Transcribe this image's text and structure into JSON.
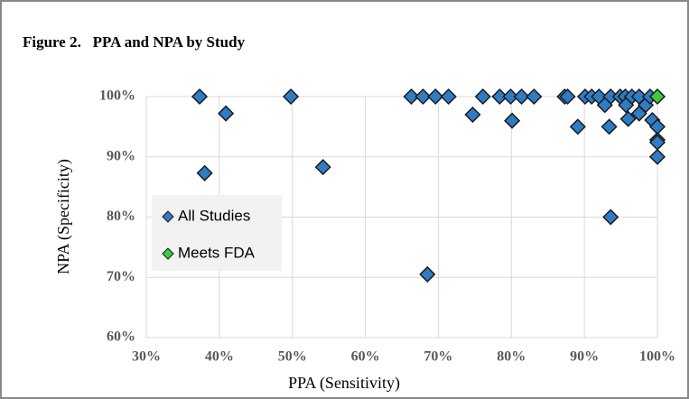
{
  "chart_data": {
    "type": "scatter",
    "title": "Figure 2.   PPA and NPA by Study",
    "x_label": "PPA (Sensitivity)",
    "y_label": "NPA (Specificity)",
    "series": [
      {
        "name": "All Studies",
        "color": "#2f7bc4",
        "x": [
          37.3,
          38.0,
          40.9,
          49.8,
          54.2,
          68.5,
          66.3,
          67.9,
          69.6,
          71.4,
          74.7,
          76.1,
          78.4,
          79.9,
          81.4,
          83.1,
          80.1,
          87.3,
          87.7,
          89.1,
          90.1,
          91.0,
          92.0,
          93.6,
          94.9,
          95.6,
          96.5,
          97.5,
          92.8,
          93.4,
          93.6,
          95.7,
          96.0,
          97.5,
          98.4,
          99.0,
          99.3,
          100,
          100,
          100,
          100
        ],
        "values": [
          100,
          87.3,
          97.2,
          100,
          88.3,
          70.5,
          100,
          100,
          100,
          100,
          97,
          100,
          100,
          100,
          100,
          100,
          96,
          100,
          100,
          95,
          100,
          100,
          100,
          100,
          100,
          100,
          100,
          100,
          98.6,
          95,
          80,
          98.6,
          96.3,
          97.2,
          98.6,
          100,
          96.1,
          95,
          92.8,
          92.4,
          90
        ]
      },
      {
        "name": "Meets FDA",
        "color": "#3ccc3c",
        "x": [
          100
        ],
        "values": [
          100
        ]
      }
    ],
    "xlim": [
      30,
      100
    ],
    "xticks": [
      {
        "value": 30,
        "label": "30%"
      },
      {
        "value": 40,
        "label": "40%"
      },
      {
        "value": 50,
        "label": "50%"
      },
      {
        "value": 60,
        "label": "60%"
      },
      {
        "value": 70,
        "label": "70%"
      },
      {
        "value": 80,
        "label": "80%"
      },
      {
        "value": 90,
        "label": "90%"
      },
      {
        "value": 100,
        "label": "100%"
      }
    ],
    "ylim": [
      60,
      100
    ],
    "yticks": [
      {
        "value": 60,
        "label": "60%"
      },
      {
        "value": 70,
        "label": "70%"
      },
      {
        "value": 80,
        "label": "80%"
      },
      {
        "value": 90,
        "label": "90%"
      },
      {
        "value": 100,
        "label": "100%"
      }
    ],
    "grid": true
  }
}
